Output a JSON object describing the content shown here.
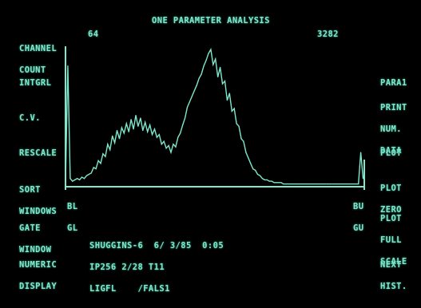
{
  "title": "ONE PARAMETER ANALYSIS",
  "channel": {
    "label_line1": "CHANNEL",
    "label_line2": "COUNT",
    "value": "64",
    "count": "3282"
  },
  "left_menu": [
    {
      "line1": "INTGRL",
      "line2": ""
    },
    {
      "line1": "C.V.",
      "line2": ""
    },
    {
      "line1": "RESCALE",
      "line2": ""
    },
    {
      "line1": "SORT",
      "line2": "WINDOWS"
    },
    {
      "line1": "GATE",
      "line2": "WINDOW"
    },
    {
      "line1": "NUMERIC",
      "line2": "DISPLAY"
    }
  ],
  "right_menu": [
    {
      "line1": "PARA1",
      "line2": "",
      "line3": ""
    },
    {
      "line1": "PRINT",
      "line2": "NUM.",
      "line3": "DATA"
    },
    {
      "line1": "PLOT",
      "line2": "",
      "line3": ""
    },
    {
      "line1": "PLOT",
      "line2": "ZERO",
      "line3": ""
    },
    {
      "line1": "PLOT",
      "line2": "FULL",
      "line3": "SCALE"
    },
    {
      "line1": "NEXT",
      "line2": "HIST.",
      "line3": ""
    }
  ],
  "cursors": {
    "left_top": "BL",
    "left_bottom": "GL",
    "right_top": "BU",
    "right_bottom": "GU"
  },
  "info": {
    "line1": "SHUGGINS-6  6/ 3/85  0:05",
    "line2": "IP256 2/28 T11",
    "line3": "LIGFL    /FALS1"
  },
  "chart_data": {
    "type": "line",
    "title": "ONE PARAMETER ANALYSIS",
    "xlabel": "",
    "ylabel": "",
    "xlim": [
      0,
      255
    ],
    "ylim": [
      0,
      100
    ],
    "x_step": 2,
    "values": [
      3,
      88,
      6,
      4,
      5,
      6,
      5,
      7,
      6,
      8,
      9,
      10,
      14,
      13,
      19,
      17,
      24,
      22,
      31,
      27,
      37,
      32,
      41,
      35,
      43,
      39,
      46,
      40,
      49,
      42,
      52,
      44,
      50,
      41,
      47,
      40,
      45,
      38,
      42,
      36,
      38,
      31,
      33,
      28,
      30,
      25,
      31,
      29,
      36,
      39,
      45,
      50,
      58,
      62,
      66,
      70,
      74,
      79,
      82,
      88,
      92,
      97,
      100,
      89,
      93,
      80,
      87,
      75,
      77,
      63,
      68,
      55,
      57,
      46,
      44,
      35,
      33,
      25,
      21,
      17,
      13,
      12,
      9,
      8,
      6,
      5,
      5,
      4,
      4,
      3,
      3,
      3,
      3,
      2,
      2,
      2,
      2,
      2,
      2,
      2,
      2,
      2,
      2,
      2,
      2,
      2,
      2,
      2,
      2,
      2,
      2,
      2,
      2,
      2,
      2,
      2,
      2,
      2,
      2,
      2,
      2,
      2,
      2,
      2,
      2,
      2,
      25,
      6
    ]
  }
}
